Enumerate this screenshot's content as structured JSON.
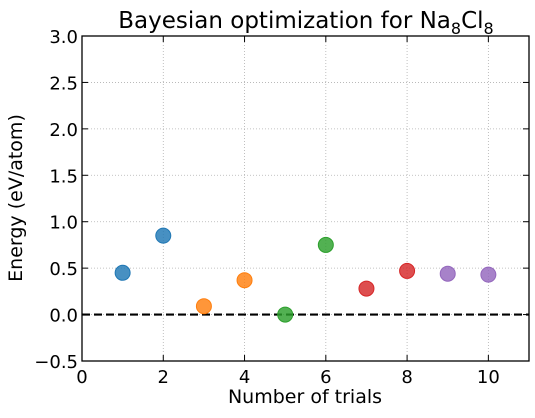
{
  "chart_data": {
    "type": "scatter",
    "title": {
      "prefix": "Bayesian optimization for Na",
      "sub1": "8",
      "mid": "Cl",
      "sub2": "8"
    },
    "xlabel": "Number of trials",
    "ylabel": "Energy (eV/atom)",
    "xlim": [
      0,
      11
    ],
    "ylim": [
      -0.5,
      3.0
    ],
    "xticks": [
      {
        "value": 0,
        "label": "0"
      },
      {
        "value": 2,
        "label": "2"
      },
      {
        "value": 4,
        "label": "4"
      },
      {
        "value": 6,
        "label": "6"
      },
      {
        "value": 8,
        "label": "8"
      },
      {
        "value": 10,
        "label": "10"
      }
    ],
    "yticks": [
      {
        "value": -0.5,
        "label": "−0.5"
      },
      {
        "value": 0.0,
        "label": "0.0"
      },
      {
        "value": 0.5,
        "label": "0.5"
      },
      {
        "value": 1.0,
        "label": "1.0"
      },
      {
        "value": 1.5,
        "label": "1.5"
      },
      {
        "value": 2.0,
        "label": "2.0"
      },
      {
        "value": 2.5,
        "label": "2.5"
      },
      {
        "value": 3.0,
        "label": "3.0"
      }
    ],
    "grid": true,
    "reference_line": {
      "y": 0.0,
      "style": "dashed",
      "color": "#000000"
    },
    "points": [
      {
        "x": 1,
        "y": 0.45,
        "color": "#1f77b4"
      },
      {
        "x": 2,
        "y": 0.85,
        "color": "#1f77b4"
      },
      {
        "x": 3,
        "y": 0.09,
        "color": "#ff7f0e"
      },
      {
        "x": 4,
        "y": 0.37,
        "color": "#ff7f0e"
      },
      {
        "x": 5,
        "y": 0.0,
        "color": "#2ca02c"
      },
      {
        "x": 6,
        "y": 0.75,
        "color": "#2ca02c"
      },
      {
        "x": 7,
        "y": 0.28,
        "color": "#d62728"
      },
      {
        "x": 8,
        "y": 0.47,
        "color": "#d62728"
      },
      {
        "x": 9,
        "y": 0.44,
        "color": "#9467bd"
      },
      {
        "x": 10,
        "y": 0.43,
        "color": "#9467bd"
      }
    ]
  }
}
